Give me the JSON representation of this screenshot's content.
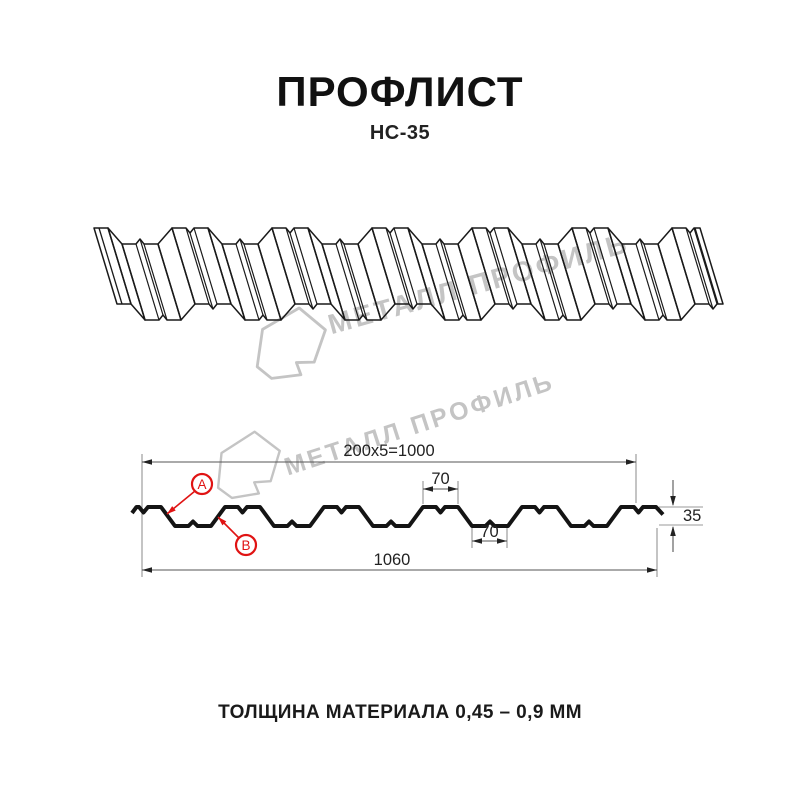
{
  "header": {
    "title": "ПРОФЛИСТ",
    "model": "НС-35"
  },
  "watermark": {
    "text": "МЕТАЛЛ ПРОФИЛЬ",
    "color": "#c4c4c4"
  },
  "diagram": {
    "dimensions": {
      "top_total": "200x5=1000",
      "rib_width": "70",
      "valley_width": "70",
      "profile_height": "35",
      "sheet_width": "1060"
    },
    "labels": {
      "a": "A",
      "b": "B"
    },
    "colors": {
      "accent": "#e01313",
      "line": "#1a1a1a",
      "dim": "#555555",
      "ext": "#888888"
    }
  },
  "footer": {
    "note": "ТОЛЩИНА МАТЕРИАЛА 0,45 – 0,9 ММ"
  }
}
